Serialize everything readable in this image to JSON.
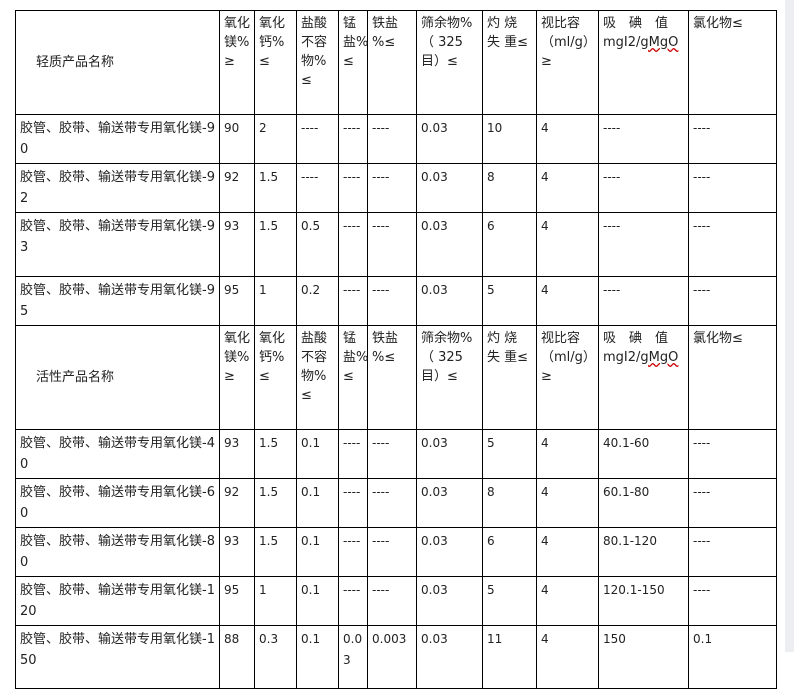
{
  "headers_light": {
    "name": "轻质产品名称",
    "cols": [
      "氧化镁%≥",
      "氧化钙%≤",
      "盐酸不容物%≤",
      "锰盐%≤",
      "铁盐 %≤",
      "筛余物%（ 325目）≤",
      "灼 烧 失 重≤",
      "视比容（ml/g）≥",
      "吸　碘　值 mgI2/gMgO",
      "氯化物≤"
    ]
  },
  "rows_light": [
    [
      "胶管、胶带、输送带专用氧化镁-90",
      "90",
      "2",
      "----",
      "----",
      "----",
      "0.03",
      "10",
      "4",
      "----",
      "----"
    ],
    [
      "胶管、胶带、输送带专用氧化镁-92",
      "92",
      "1.5",
      "----",
      "----",
      "----",
      "0.03",
      "8",
      "4",
      "----",
      "----"
    ],
    [
      "胶管、胶带、输送带专用氧化镁-93",
      "93",
      "1.5",
      "0.5",
      "----",
      "----",
      "0.03",
      "6",
      "4",
      "----",
      "----"
    ],
    [
      "胶管、胶带、输送带专用氧化镁-95",
      "95",
      "1",
      "0.2",
      "----",
      "----",
      "0.03",
      "5",
      "4",
      "----",
      "----"
    ]
  ],
  "headers_active": {
    "name": "活性产品名称",
    "cols": [
      "氧化镁%≥",
      "氧化钙%≤",
      "盐酸不容物%≤",
      "锰盐%≤",
      "铁盐 %≤",
      "筛余物%（ 325目）≤",
      "灼 烧 失 重≤",
      "视比容（ml/g）≥",
      "吸　碘　值 mgI2/gMgO",
      "氯化物≤"
    ]
  },
  "rows_active": [
    [
      "胶管、胶带、输送带专用氧化镁-40",
      "93",
      "1.5",
      "0.1",
      "----",
      "----",
      "0.03",
      "5",
      "4",
      "40.1-60",
      "----"
    ],
    [
      "胶管、胶带、输送带专用氧化镁-60",
      "92",
      "1.5",
      "0.1",
      "----",
      "----",
      "0.03",
      "8",
      "4",
      "60.1-80",
      "----"
    ],
    [
      "胶管、胶带、输送带专用氧化镁-80",
      "93",
      "1.5",
      "0.1",
      "----",
      "----",
      "0.03",
      "6",
      "4",
      "80.1-120",
      "----"
    ],
    [
      "胶管、胶带、输送带专用氧化镁-120",
      "95",
      "1",
      "0.1",
      "----",
      "----",
      "0.03",
      "5",
      "4",
      "120.1-150",
      "----"
    ],
    [
      "胶管、胶带、输送带专用氧化镁-150",
      "88",
      "0.3",
      "0.1",
      "0.03",
      "0.003",
      "0.03",
      "11",
      "4",
      "150",
      "0.1"
    ]
  ]
}
